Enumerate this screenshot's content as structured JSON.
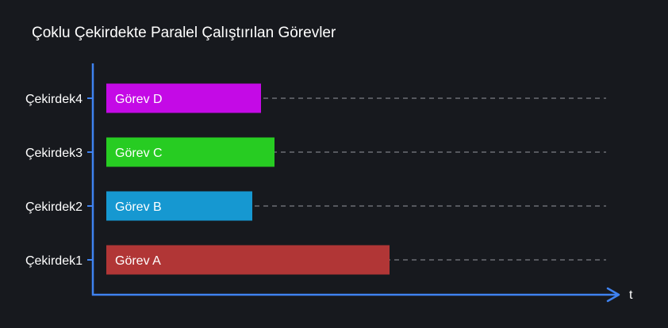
{
  "chart_data": {
    "type": "bar",
    "orientation": "horizontal",
    "title": "Çoklu Çekirdekte Paralel Çalıştırılan Görevler",
    "xlabel": "t",
    "ylabel": "",
    "categories": [
      "Çekirdek1",
      "Çekirdek2",
      "Çekirdek3",
      "Çekirdek4"
    ],
    "bars": [
      {
        "category": "Çekirdek1",
        "label": "Görev A",
        "value": 357,
        "color": "#b13636"
      },
      {
        "category": "Çekirdek2",
        "label": "Görev B",
        "value": 184,
        "color": "#1698d1"
      },
      {
        "category": "Çekirdek3",
        "label": "Görev C",
        "value": 212,
        "color": "#27cc22"
      },
      {
        "category": "Çekirdek4",
        "label": "Görev D",
        "value": 195,
        "color": "#c40ae6"
      }
    ],
    "xlim": [
      0,
      630
    ],
    "grid": "dashed horizontal lines per category",
    "legend": "none"
  },
  "colors": {
    "background": "#17191e",
    "axis": "#3f82f0",
    "grid": "#6b6e73",
    "text": "#ffffff"
  }
}
